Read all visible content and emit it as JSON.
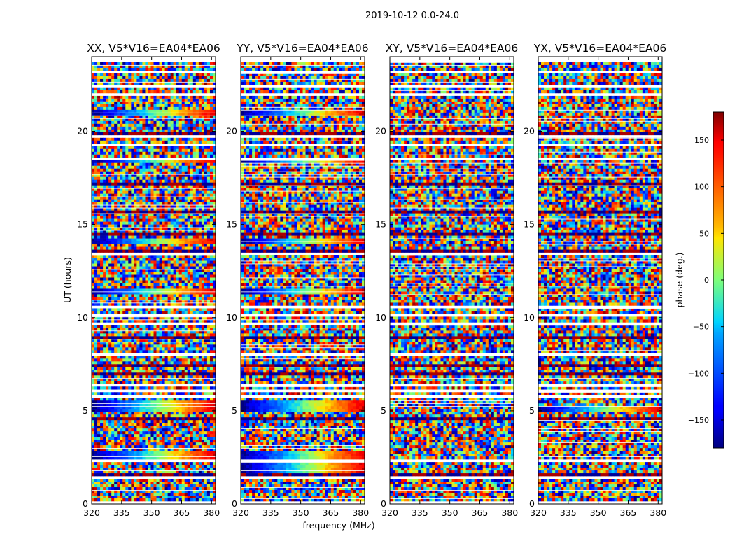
{
  "chart_data": {
    "type": "heatmap",
    "suptitle": "2019-10-12 0.0-24.0",
    "xlabel": "frequency (MHz)",
    "ylabel": "UT (hours)",
    "xlim": [
      320,
      382
    ],
    "ylim": [
      0,
      24
    ],
    "x_ticks": [
      320,
      335,
      350,
      365,
      380
    ],
    "x_tick_labels": [
      "320",
      "335",
      "350",
      "365",
      "380"
    ],
    "y_ticks": [
      0,
      5,
      10,
      15,
      20
    ],
    "y_tick_labels": [
      "0",
      "5",
      "10",
      "15",
      "20"
    ],
    "panels": [
      {
        "title": "XX, V5*V16=EA04*EA06",
        "polarization": "XX",
        "coherent_hours": [
          [
            20.8,
            21.2
          ],
          [
            18.3,
            18.6
          ],
          [
            13.9,
            14.2
          ],
          [
            11.2,
            11.5
          ],
          [
            5.0,
            5.6
          ],
          [
            2.2,
            2.8
          ],
          [
            1.3,
            1.7
          ]
        ]
      },
      {
        "title": "YY, V5*V16=EA04*EA06",
        "polarization": "YY",
        "coherent_hours": [
          [
            20.8,
            21.2
          ],
          [
            18.3,
            18.6
          ],
          [
            13.9,
            14.2
          ],
          [
            11.2,
            11.5
          ],
          [
            5.0,
            5.6
          ],
          [
            1.3,
            2.8
          ]
        ]
      },
      {
        "title": "XY, V5*V16=EA04*EA06",
        "polarization": "XY",
        "coherent_hours": []
      },
      {
        "title": "YX, V5*V16=EA04*EA06",
        "polarization": "YX",
        "coherent_hours": [
          [
            5.0,
            5.3
          ]
        ]
      }
    ],
    "colorbar": {
      "label": "phase (deg.)",
      "range": [
        -180,
        180
      ],
      "ticks": [
        150,
        100,
        50,
        0,
        -50,
        -100,
        -150
      ],
      "tick_labels": [
        "150",
        "100",
        "50",
        "0",
        "−50",
        "−100",
        "−150"
      ],
      "colormap": "jet"
    },
    "grid": false
  }
}
